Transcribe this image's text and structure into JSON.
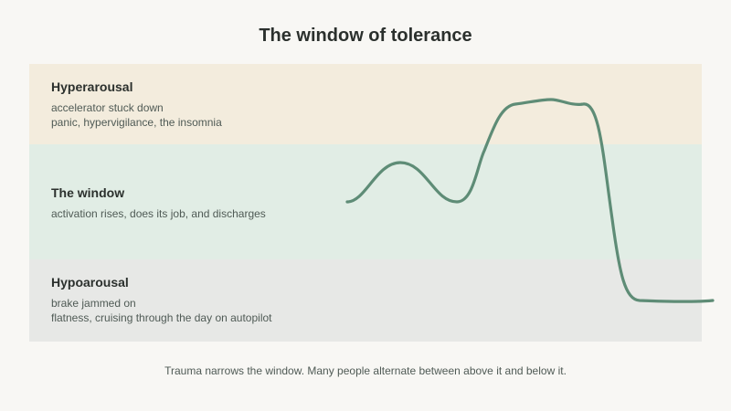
{
  "title": "The window of tolerance",
  "zones": {
    "hyper": {
      "name": "Hyperarousal",
      "line1": "accelerator stuck down",
      "line2": "panic, hypervigilance, the insomnia",
      "color": "#f3ecdd"
    },
    "window": {
      "name": "The window",
      "line1": "activation rises, does its job, and discharges",
      "color": "#e1ede5"
    },
    "hypo": {
      "name": "Hypoarousal",
      "line1": "brake jammed on",
      "line2": "flatness, cruising through the day on autopilot",
      "color": "#e7e8e6"
    }
  },
  "curve_color": "#5e8c76",
  "caption": "Trauma narrows the window. Many people alternate between above it and below it."
}
